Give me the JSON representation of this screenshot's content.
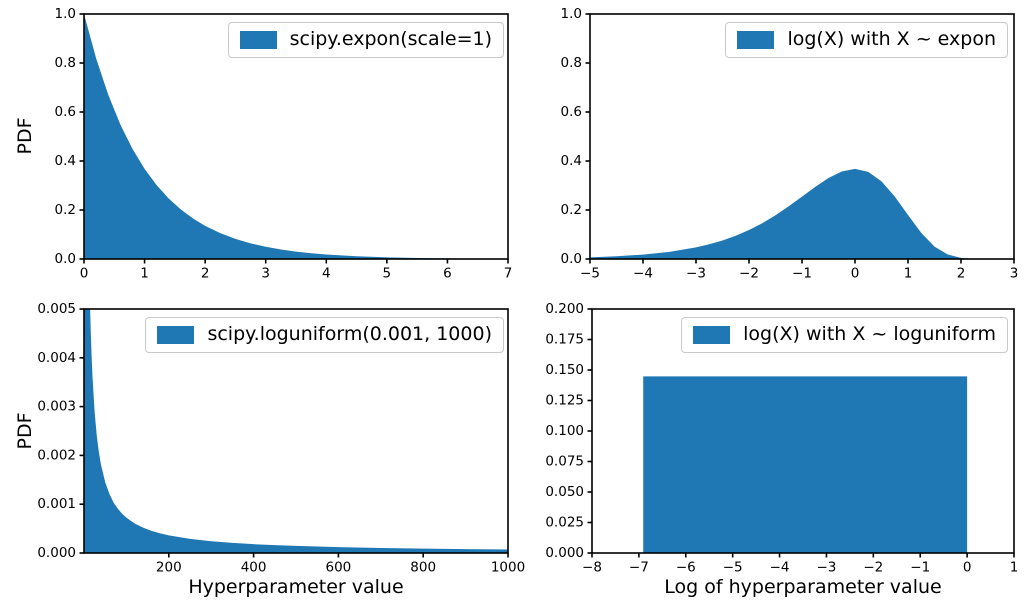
{
  "figure": {
    "background": "#ffffff",
    "accent_fill_color": "#1f77b4",
    "axis_color": "#000000"
  },
  "chart_data": [
    {
      "id": "expon-pdf",
      "type": "area",
      "position": "top-left",
      "legend_label": "scipy.expon(scale=1)",
      "xlabel": "",
      "ylabel": "PDF",
      "xlim": [
        0,
        7
      ],
      "ylim": [
        0,
        1.0
      ],
      "xtick_values": [
        0,
        1,
        2,
        3,
        4,
        5,
        6,
        7
      ],
      "xtick_labels": [
        "0",
        "1",
        "2",
        "3",
        "4",
        "5",
        "6",
        "7"
      ],
      "ytick_values": [
        0.0,
        0.2,
        0.4,
        0.6,
        0.8,
        1.0
      ],
      "ytick_labels": [
        "0.0",
        "0.2",
        "0.4",
        "0.6",
        "0.8",
        "1.0"
      ],
      "grid": false,
      "legend_position": "upper-right",
      "fill_color": "#1f77b4",
      "series": [
        {
          "name": "scipy.expon(scale=1)",
          "x": [
            0,
            0.2,
            0.4,
            0.6,
            0.8,
            1,
            1.2,
            1.4,
            1.6,
            1.8,
            2,
            2.25,
            2.5,
            2.75,
            3,
            3.25,
            3.5,
            3.75,
            4,
            4.5,
            5,
            5.5,
            6,
            6.5,
            7
          ],
          "y": [
            1.0,
            0.8187,
            0.6703,
            0.5488,
            0.4493,
            0.3679,
            0.3012,
            0.2466,
            0.2019,
            0.1653,
            0.1353,
            0.1054,
            0.0821,
            0.0639,
            0.0498,
            0.0388,
            0.0302,
            0.0235,
            0.0183,
            0.0111,
            0.0067,
            0.0041,
            0.0025,
            0.0015,
            0.0009
          ]
        }
      ]
    },
    {
      "id": "log-expon-pdf",
      "type": "area",
      "position": "top-right",
      "legend_label": "log(X) with X ~ expon",
      "xlabel": "",
      "ylabel": "",
      "xlim": [
        -5,
        3
      ],
      "ylim": [
        0,
        1.0
      ],
      "xtick_values": [
        -5,
        -4,
        -3,
        -2,
        -1,
        0,
        1,
        2,
        3
      ],
      "xtick_labels": [
        "−5",
        "−4",
        "−3",
        "−2",
        "−1",
        "0",
        "1",
        "2",
        "3"
      ],
      "ytick_values": [
        0.0,
        0.2,
        0.4,
        0.6,
        0.8,
        1.0
      ],
      "ytick_labels": [
        "0.0",
        "0.2",
        "0.4",
        "0.6",
        "0.8",
        "1.0"
      ],
      "grid": false,
      "legend_position": "upper-right",
      "fill_color": "#1f77b4",
      "series": [
        {
          "name": "log(X) with X ~ expon",
          "x": [
            -5,
            -4.5,
            -4,
            -3.5,
            -3,
            -2.75,
            -2.5,
            -2.25,
            -2,
            -1.75,
            -1.5,
            -1.25,
            -1,
            -0.75,
            -0.5,
            -0.25,
            0,
            0.25,
            0.5,
            0.75,
            1,
            1.25,
            1.5,
            1.75,
            2,
            2.25,
            2.5,
            3
          ],
          "y": [
            0.0067,
            0.011,
            0.018,
            0.0293,
            0.0474,
            0.06,
            0.0757,
            0.0948,
            0.1182,
            0.146,
            0.1785,
            0.2151,
            0.2546,
            0.2945,
            0.3307,
            0.3574,
            0.3679,
            0.3556,
            0.317,
            0.2549,
            0.1794,
            0.1064,
            0.0507,
            0.0182,
            0.0046,
            0.0007,
            0.0001,
            0.0
          ]
        }
      ]
    },
    {
      "id": "loguniform-pdf",
      "type": "area",
      "position": "bottom-left",
      "legend_label": "scipy.loguniform(0.001, 1000)",
      "xlabel": "Hyperparameter value",
      "ylabel": "PDF",
      "xlim": [
        0.001,
        1000
      ],
      "ylim": [
        0,
        0.005
      ],
      "xtick_values": [
        200,
        400,
        600,
        800,
        1000
      ],
      "xtick_labels": [
        "200",
        "400",
        "600",
        "800",
        "1000"
      ],
      "ytick_values": [
        0.0,
        0.001,
        0.002,
        0.003,
        0.004,
        0.005
      ],
      "ytick_labels": [
        "0.000",
        "0.001",
        "0.002",
        "0.003",
        "0.004",
        "0.005"
      ],
      "grid": false,
      "legend_position": "upper-right",
      "fill_color": "#1f77b4",
      "clipped_at_top": true,
      "series": [
        {
          "name": "scipy.loguniform(0.001, 1000)",
          "x": [
            0.001,
            14.48,
            16,
            18,
            20,
            25,
            30,
            35,
            40,
            50,
            60,
            70,
            80,
            90,
            100,
            120,
            140,
            160,
            180,
            200,
            250,
            300,
            350,
            400,
            450,
            500,
            600,
            700,
            800,
            900,
            1000
          ],
          "y": [
            0.005,
            0.005,
            0.00452,
            0.00402,
            0.00362,
            0.0029,
            0.00241,
            0.00207,
            0.00181,
            0.00145,
            0.00121,
            0.00103,
            0.000905,
            0.000804,
            0.000724,
            0.000603,
            0.000517,
            0.000452,
            0.000402,
            0.000362,
            0.00029,
            0.000241,
            0.000207,
            0.000181,
            0.000161,
            0.000145,
            0.000121,
            0.000103,
            9.05e-05,
            8.04e-05,
            7.24e-05
          ]
        }
      ]
    },
    {
      "id": "log-loguniform-pdf",
      "type": "area",
      "position": "bottom-right",
      "legend_label": "log(X) with X ~ loguniform",
      "xlabel": "Log of hyperparameter value",
      "ylabel": "",
      "xlim": [
        -8,
        1
      ],
      "ylim": [
        0,
        0.2
      ],
      "xtick_values": [
        -8,
        -7,
        -6,
        -5,
        -4,
        -3,
        -2,
        -1,
        0,
        1
      ],
      "xtick_labels": [
        "−8",
        "−7",
        "−6",
        "−5",
        "−4",
        "−3",
        "−2",
        "−1",
        "0",
        "1"
      ],
      "ytick_values": [
        0.0,
        0.025,
        0.05,
        0.075,
        0.1,
        0.125,
        0.15,
        0.175,
        0.2
      ],
      "ytick_labels": [
        "0.000",
        "0.025",
        "0.050",
        "0.075",
        "0.100",
        "0.125",
        "0.150",
        "0.175",
        "0.200"
      ],
      "grid": false,
      "legend_position": "upper-right",
      "fill_color": "#1f77b4",
      "series": [
        {
          "name": "log(X) with X ~ loguniform",
          "x": [
            -6.9078,
            0
          ],
          "y": [
            0.1448,
            0.1448
          ]
        }
      ]
    }
  ]
}
